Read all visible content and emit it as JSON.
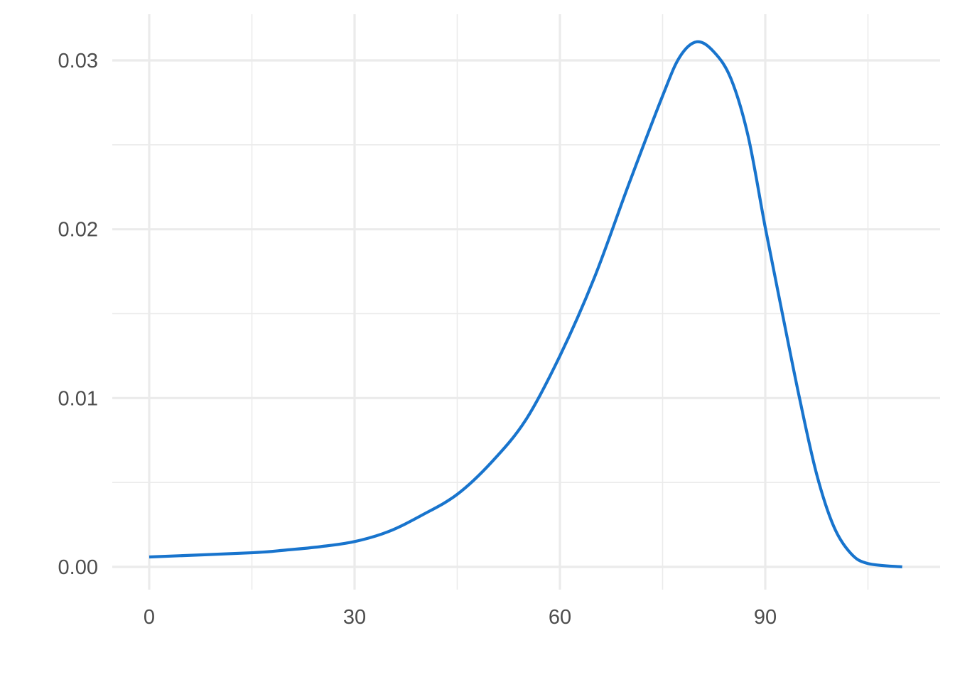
{
  "chart_data": {
    "type": "line",
    "title": "",
    "xlabel": "",
    "ylabel": "",
    "xlim": [
      -5.5,
      115
    ],
    "ylim": [
      -0.0014,
      0.0326
    ],
    "x_ticks": [
      0,
      30,
      60,
      90
    ],
    "x_tick_labels": [
      "0",
      "30",
      "60",
      "90"
    ],
    "x_minor_ticks": [
      15,
      45,
      75,
      105
    ],
    "y_ticks": [
      0,
      0.01,
      0.02,
      0.03
    ],
    "y_tick_labels": [
      "0.00",
      "0.01",
      "0.02",
      "0.03"
    ],
    "y_minor_ticks": [
      0.005,
      0.015,
      0.025
    ],
    "grid": true,
    "series": [
      {
        "color": "#1874CD",
        "x": [
          0,
          15,
          20,
          25,
          30,
          35,
          40,
          45,
          50,
          55,
          60,
          65,
          70,
          75,
          77.5,
          80,
          82.5,
          85,
          87.5,
          90,
          92.5,
          95,
          97.5,
          100,
          102.5,
          105,
          110
        ],
        "y": [
          0.00059,
          0.00084,
          0.001,
          0.0012,
          0.0015,
          0.0021,
          0.0031,
          0.0043,
          0.0062,
          0.0087,
          0.0125,
          0.0171,
          0.0226,
          0.0279,
          0.0302,
          0.0311,
          0.0305,
          0.0289,
          0.0255,
          0.0201,
          0.015,
          0.01,
          0.0055,
          0.0024,
          0.0008,
          0.0002,
          0.0
        ]
      }
    ]
  }
}
